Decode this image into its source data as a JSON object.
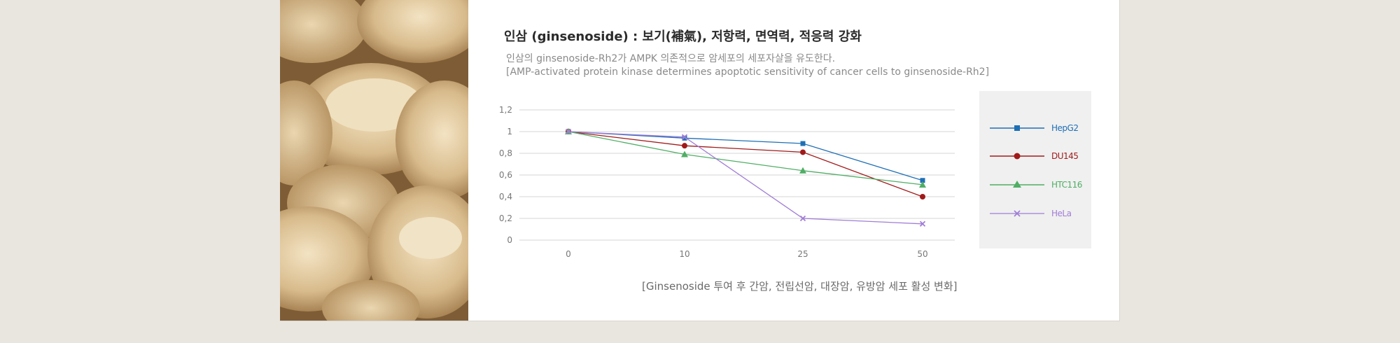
{
  "header": {
    "title": "인삼 (ginsenoside) : 보기(補氣), 저항력, 면역력, 적응력 강화",
    "subtitle_line1": "인삼의 ginsenoside-Rh2가 AMPK 의존적으로 암세포의 세포자살을 유도한다.",
    "subtitle_line2": "[AMP-activated protein kinase determines apoptotic sensitivity of cancer cells to ginsenoside-Rh2]"
  },
  "caption": "[Ginsenoside 투여 후 간암, 전립선암, 대장암, 유방암 세포 활성 변화]",
  "colors": {
    "HepG2": "#1f6fb5",
    "DU145": "#a11a1a",
    "HTC116": "#4fae64",
    "HeLa": "#a07ed6",
    "grid": "#d4d4d4",
    "axis_text": "#777777"
  },
  "chart_data": {
    "type": "line",
    "categories": [
      "0",
      "10",
      "25",
      "50"
    ],
    "yticks": [
      "0",
      "0,2",
      "0,4",
      "0,6",
      "0,8",
      "1",
      "1,2"
    ],
    "ylim": [
      0,
      1.2
    ],
    "grid": true,
    "legend_position": "right",
    "series": [
      {
        "name": "HepG2",
        "marker": "square",
        "values": [
          1.0,
          0.94,
          0.89,
          0.55
        ]
      },
      {
        "name": "DU145",
        "marker": "circle",
        "values": [
          1.0,
          0.87,
          0.81,
          0.4
        ]
      },
      {
        "name": "HTC116",
        "marker": "triangle",
        "values": [
          1.0,
          0.79,
          0.64,
          0.51
        ]
      },
      {
        "name": "HeLa",
        "marker": "x",
        "values": [
          1.0,
          0.95,
          0.2,
          0.15
        ]
      }
    ]
  }
}
